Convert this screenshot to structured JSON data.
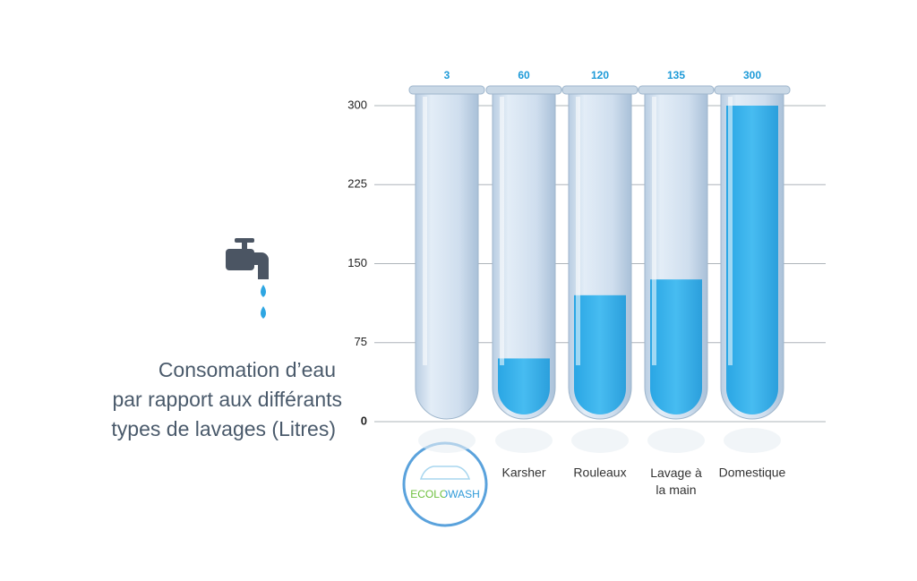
{
  "chart_data": {
    "type": "bar",
    "title": [
      "Consomation d’eau",
      "par rapport aux différants",
      "types de lavages (Litres)"
    ],
    "categories": [
      "ECOLOWASH",
      "Karsher",
      "Rouleaux",
      "Lavage à la main",
      "Domestique"
    ],
    "values": [
      3,
      60,
      120,
      135,
      300
    ],
    "color": "#3ab2ec",
    "ylim": [
      0,
      300
    ],
    "yticks": [
      0,
      75,
      150,
      225,
      300
    ],
    "grid": true
  }
}
